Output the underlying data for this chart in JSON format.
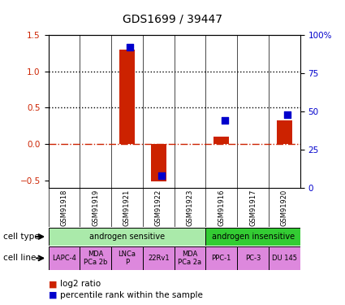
{
  "title": "GDS1699 / 39447",
  "samples": [
    "GSM91918",
    "GSM91919",
    "GSM91921",
    "GSM91922",
    "GSM91923",
    "GSM91916",
    "GSM91917",
    "GSM91920"
  ],
  "log2_ratio": [
    0.0,
    0.0,
    1.3,
    -0.52,
    0.0,
    0.1,
    0.0,
    0.32
  ],
  "percentile_rank": [
    null,
    null,
    92,
    8,
    null,
    44,
    null,
    48
  ],
  "cell_types": [
    {
      "label": "androgen sensitive",
      "span": [
        0,
        5
      ],
      "color": "#aaeaaa"
    },
    {
      "label": "androgen insensitive",
      "span": [
        5,
        8
      ],
      "color": "#33cc33"
    }
  ],
  "cell_lines": [
    {
      "label": "LAPC-4",
      "span": [
        0,
        1
      ]
    },
    {
      "label": "MDA\nPCa 2b",
      "span": [
        1,
        2
      ]
    },
    {
      "label": "LNCa\nP",
      "span": [
        2,
        3
      ]
    },
    {
      "label": "22Rv1",
      "span": [
        3,
        4
      ]
    },
    {
      "label": "MDA\nPCa 2a",
      "span": [
        4,
        5
      ]
    },
    {
      "label": "PPC-1",
      "span": [
        5,
        6
      ]
    },
    {
      "label": "PC-3",
      "span": [
        6,
        7
      ]
    },
    {
      "label": "DU 145",
      "span": [
        7,
        8
      ]
    }
  ],
  "cell_line_color": "#dd88dd",
  "bar_color": "#cc2200",
  "dot_color": "#0000cc",
  "left_ylim": [
    -0.6,
    1.5
  ],
  "right_ylim": [
    0,
    100
  ],
  "left_yticks": [
    -0.5,
    0.0,
    0.5,
    1.0,
    1.5
  ],
  "right_yticks": [
    0,
    25,
    50,
    75,
    100
  ],
  "right_yticklabels": [
    "0",
    "25",
    "50",
    "75",
    "100%"
  ],
  "hlines": [
    0.5,
    1.0
  ],
  "zero_line_y": 0.0,
  "background_color": "#ffffff",
  "sample_box_color": "#cccccc",
  "label_fontsize": 8,
  "title_fontsize": 10
}
